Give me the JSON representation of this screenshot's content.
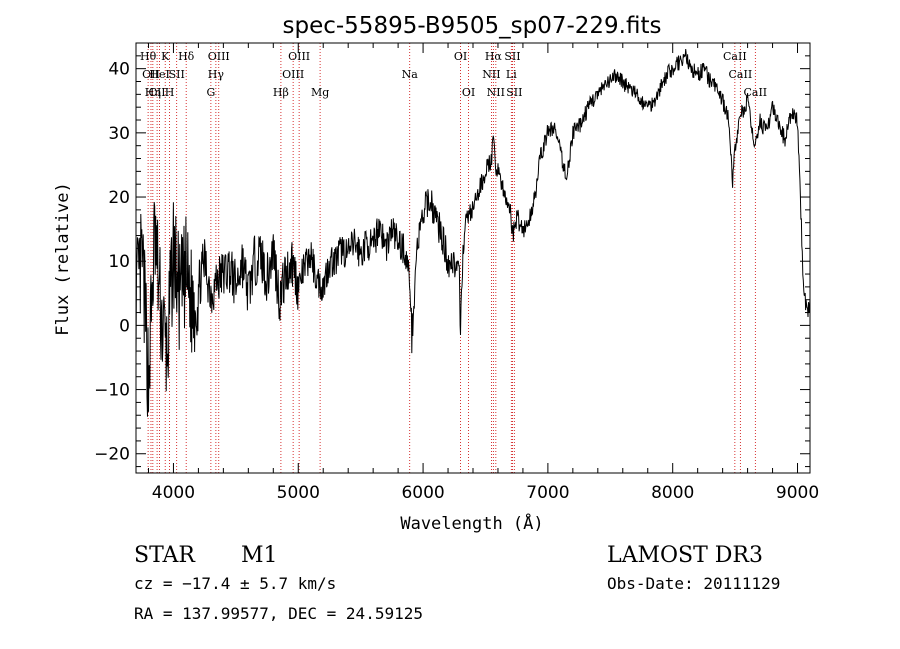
{
  "chart_data": {
    "type": "line",
    "title": "spec-55895-B9505_sp07-229.fits",
    "xlabel": "Wavelength (Å)",
    "ylabel": "Flux (relative)",
    "xlim": [
      3700,
      9100
    ],
    "ylim": [
      -23,
      44
    ],
    "xticks": [
      4000,
      5000,
      6000,
      7000,
      8000,
      9000
    ],
    "yticks": [
      -20,
      -10,
      0,
      10,
      20,
      30,
      40
    ],
    "grid": false,
    "series": [
      {
        "color": "#000000",
        "x": [
          3700,
          3750,
          3800,
          3850,
          3900,
          3950,
          4000,
          4050,
          4100,
          4150,
          4200,
          4250,
          4300,
          4350,
          4400,
          4450,
          4500,
          4550,
          4600,
          4650,
          4700,
          4750,
          4800,
          4850,
          4900,
          4950,
          5000,
          5050,
          5100,
          5150,
          5200,
          5250,
          5300,
          5350,
          5400,
          5450,
          5500,
          5550,
          5600,
          5650,
          5700,
          5750,
          5800,
          5850,
          5895,
          5910,
          5950,
          6000,
          6050,
          6100,
          6150,
          6200,
          6250,
          6290,
          6300,
          6320,
          6350,
          6400,
          6450,
          6500,
          6550,
          6563,
          6580,
          6600,
          6650,
          6700,
          6720,
          6750,
          6800,
          6850,
          6900,
          6950,
          7000,
          7050,
          7100,
          7150,
          7200,
          7250,
          7300,
          7350,
          7400,
          7450,
          7500,
          7550,
          7600,
          7650,
          7700,
          7750,
          7800,
          7850,
          7900,
          7950,
          8000,
          8050,
          8100,
          8150,
          8200,
          8250,
          8300,
          8350,
          8400,
          8450,
          8480,
          8500,
          8550,
          8600,
          8650,
          8700,
          8750,
          8800,
          8850,
          8900,
          8950,
          9000,
          9050,
          9080,
          9100
        ],
        "y": [
          4,
          10,
          -8,
          14,
          2,
          -5,
          12,
          4,
          8,
          3,
          6,
          10,
          5,
          7,
          8,
          9,
          6,
          10,
          5,
          10,
          11,
          7,
          12,
          4,
          8,
          10,
          6,
          9,
          11,
          7,
          6,
          10,
          10,
          12,
          11,
          13,
          11,
          13,
          12,
          16,
          12,
          15,
          13,
          12,
          7,
          -2,
          12,
          17,
          20,
          17,
          14,
          10,
          10,
          7,
          -1,
          12,
          17,
          18,
          21,
          24,
          26,
          29,
          24,
          25,
          20,
          18,
          14,
          17,
          15,
          16,
          21,
          27,
          30,
          31,
          27,
          23,
          30,
          31,
          33,
          35,
          36,
          37,
          38,
          39,
          38,
          37,
          36,
          35,
          34,
          35,
          37,
          39,
          40,
          41,
          42,
          40,
          39,
          40,
          38,
          37,
          35,
          32,
          22,
          28,
          33,
          35,
          28,
          32,
          30,
          34,
          31,
          29,
          33,
          32,
          5,
          2,
          4
        ]
      }
    ],
    "line_labels": [
      {
        "w": 3797,
        "name": "Hθ",
        "row": 0
      },
      {
        "w": 3820,
        "name": "OII",
        "row": 1
      },
      {
        "w": 3835,
        "name": "Hη",
        "row": 2
      },
      {
        "w": 3869,
        "name": "CII",
        "row": 2
      },
      {
        "w": 3889,
        "name": "HeI",
        "row": 1
      },
      {
        "w": 3934,
        "name": "K",
        "row": 0
      },
      {
        "w": 3969,
        "name": "H",
        "row": 2
      },
      {
        "w": 4026,
        "name": "SII",
        "row": 1
      },
      {
        "w": 4102,
        "name": "Hδ",
        "row": 0
      },
      {
        "w": 4300,
        "name": "G",
        "row": 2
      },
      {
        "w": 4340,
        "name": "Hγ",
        "row": 1
      },
      {
        "w": 4363,
        "name": "OIII",
        "row": 0
      },
      {
        "w": 4861,
        "name": "Hβ",
        "row": 2
      },
      {
        "w": 4959,
        "name": "OIII",
        "row": 1
      },
      {
        "w": 5007,
        "name": "OIII",
        "row": 0
      },
      {
        "w": 5175,
        "name": "Mg",
        "row": 2
      },
      {
        "w": 5893,
        "name": "Na",
        "row": 1
      },
      {
        "w": 6300,
        "name": "OI",
        "row": 0
      },
      {
        "w": 6364,
        "name": "OI",
        "row": 2
      },
      {
        "w": 6548,
        "name": "NII",
        "row": 1
      },
      {
        "w": 6563,
        "name": "Hα",
        "row": 0
      },
      {
        "w": 6583,
        "name": "NII",
        "row": 2
      },
      {
        "w": 6707,
        "name": "Li",
        "row": 1
      },
      {
        "w": 6716,
        "name": "SII",
        "row": 0
      },
      {
        "w": 6731,
        "name": "SII",
        "row": 2
      },
      {
        "w": 8498,
        "name": "CaII",
        "row": 0
      },
      {
        "w": 8542,
        "name": "CaII",
        "row": 1
      },
      {
        "w": 8662,
        "name": "CaII",
        "row": 2
      }
    ]
  },
  "footer": {
    "object_class": "STAR",
    "subclass": "M1",
    "cz": "cz = −17.4 ± 5.7 km/s",
    "coords": "RA = 137.99577, DEC =  24.59125",
    "survey": "LAMOST DR3",
    "obs_date": "Obs-Date: 20111129"
  }
}
